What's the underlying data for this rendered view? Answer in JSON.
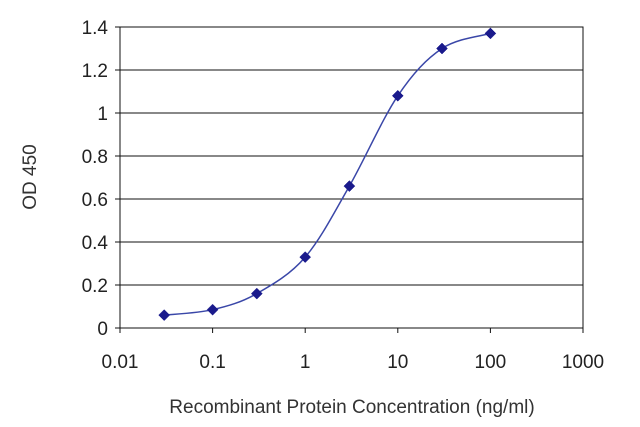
{
  "chart_data": {
    "type": "scatter",
    "title": "",
    "xlabel": "Recombinant Protein Concentration (ng/ml)",
    "ylabel": "OD 450",
    "x_scale": "log",
    "xlim": [
      0.01,
      1000
    ],
    "ylim": [
      0,
      1.4
    ],
    "x_ticks": [
      0.01,
      0.1,
      1,
      10,
      100,
      1000
    ],
    "x_tick_labels": [
      "0.01",
      "0.1",
      "1",
      "10",
      "100",
      "1000"
    ],
    "y_ticks": [
      0,
      0.2,
      0.4,
      0.6,
      0.8,
      1,
      1.2,
      1.4
    ],
    "y_tick_labels": [
      "0",
      "0.2",
      "0.4",
      "0.6",
      "0.8",
      "1",
      "1.2",
      "1.4"
    ],
    "grid": "horizontal",
    "legend": "none",
    "series": [
      {
        "x": [
          0.03,
          0.1,
          0.3,
          1,
          3,
          10,
          30,
          100
        ],
        "y": [
          0.06,
          0.085,
          0.16,
          0.33,
          0.66,
          1.08,
          1.3,
          1.37
        ],
        "marker": "diamond",
        "fit_curve": true
      }
    ],
    "colors": {
      "series": "#1a1a8c",
      "curve": "#3a47a8",
      "grid": "#111111",
      "frame": "#111111"
    }
  }
}
